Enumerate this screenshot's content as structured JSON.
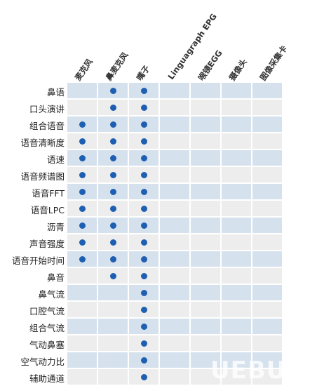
{
  "matrix": {
    "columns": [
      "麦克风",
      "鼻麦克风",
      "嘴子",
      "Linguagraph EPG",
      "喉镜EGG",
      "摄像头",
      "图像采集卡"
    ],
    "rows": [
      {
        "label": "鼻语",
        "marks": [
          false,
          true,
          true,
          false,
          false,
          false,
          false
        ]
      },
      {
        "label": "口头演讲",
        "marks": [
          false,
          true,
          true,
          false,
          false,
          false,
          false
        ]
      },
      {
        "label": "组合语音",
        "marks": [
          true,
          true,
          true,
          false,
          false,
          false,
          false
        ]
      },
      {
        "label": "语音清晰度",
        "marks": [
          true,
          true,
          true,
          false,
          false,
          false,
          false
        ]
      },
      {
        "label": "语速",
        "marks": [
          true,
          true,
          true,
          false,
          false,
          false,
          false
        ]
      },
      {
        "label": "语音频谱图",
        "marks": [
          true,
          true,
          true,
          false,
          false,
          false,
          false
        ]
      },
      {
        "label": "语音FFT",
        "marks": [
          true,
          true,
          true,
          false,
          false,
          false,
          false
        ]
      },
      {
        "label": "语音LPC",
        "marks": [
          true,
          true,
          true,
          false,
          false,
          false,
          false
        ]
      },
      {
        "label": "沥青",
        "marks": [
          true,
          true,
          true,
          false,
          false,
          false,
          false
        ]
      },
      {
        "label": "声音强度",
        "marks": [
          true,
          true,
          true,
          false,
          false,
          false,
          false
        ]
      },
      {
        "label": "语音开始时间",
        "marks": [
          true,
          true,
          true,
          false,
          false,
          false,
          false
        ]
      },
      {
        "label": "鼻音",
        "marks": [
          false,
          true,
          true,
          false,
          false,
          false,
          false
        ]
      },
      {
        "label": "鼻气流",
        "marks": [
          false,
          false,
          true,
          false,
          false,
          false,
          false
        ]
      },
      {
        "label": "口腔气流",
        "marks": [
          false,
          false,
          true,
          false,
          false,
          false,
          false
        ]
      },
      {
        "label": "组合气流",
        "marks": [
          false,
          false,
          true,
          false,
          false,
          false,
          false
        ]
      },
      {
        "label": "气动鼻塞",
        "marks": [
          false,
          false,
          true,
          false,
          false,
          false,
          false
        ]
      },
      {
        "label": "空气动力比",
        "marks": [
          false,
          false,
          true,
          false,
          false,
          false,
          false
        ]
      },
      {
        "label": "辅助通道",
        "marks": [
          false,
          false,
          true,
          false,
          false,
          false,
          false
        ]
      }
    ]
  },
  "colors": {
    "dot": "#1f5fb1",
    "band_blue": "#d6e1ee",
    "band_gray": "#ededed"
  },
  "watermark": "UEBUG"
}
